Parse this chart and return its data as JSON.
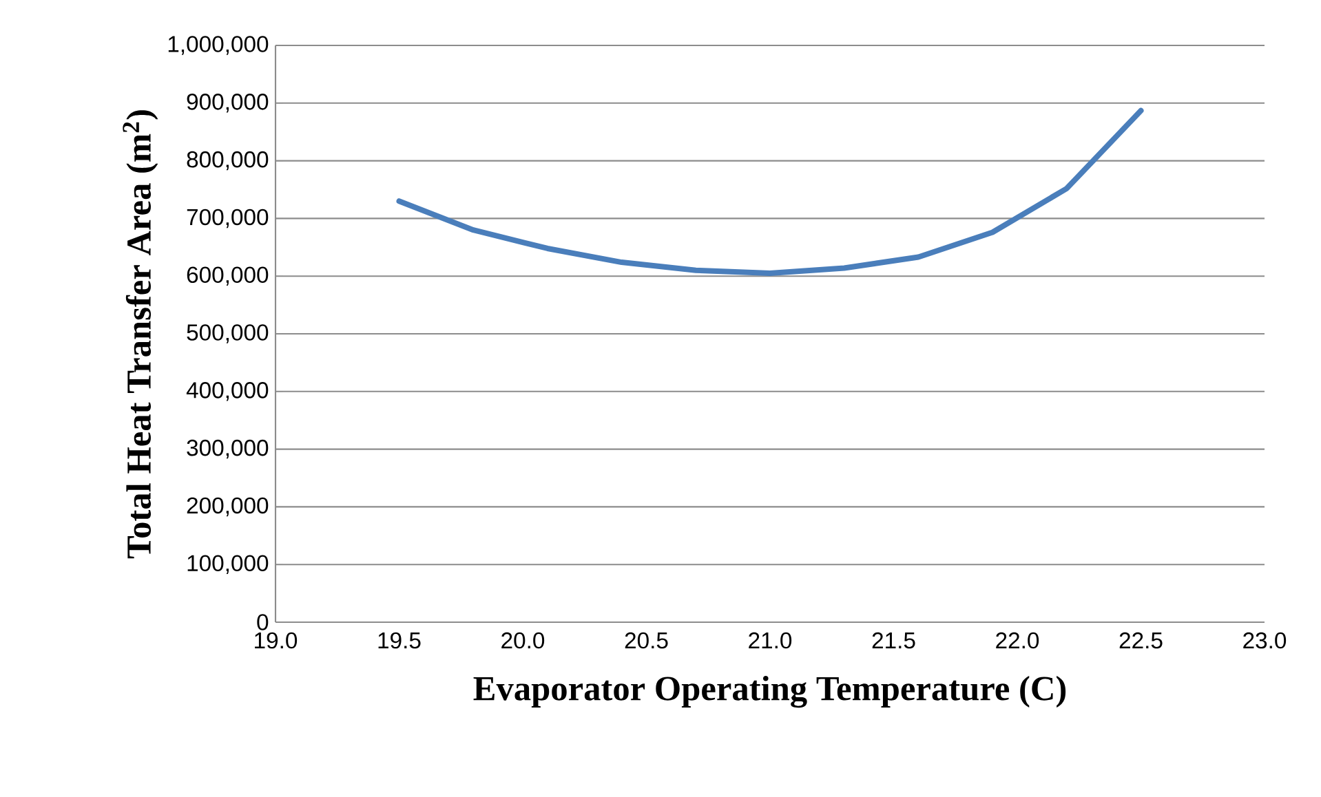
{
  "chart_data": {
    "type": "line",
    "xlabel": "Evaporator Operating Temperature (C)",
    "ylabel": "Total Heat Transfer Area (m$^{2}$)",
    "x": [
      19.5,
      19.8,
      20.1,
      20.4,
      20.7,
      21.0,
      21.3,
      21.6,
      21.9,
      22.2,
      22.5
    ],
    "series": [
      {
        "color": "#4a7ebb",
        "values": [
          730000,
          680000,
          648000,
          624000,
          610000,
          605000,
          614000,
          633000,
          676000,
          752000,
          887000
        ]
      }
    ],
    "xlim": [
      19.0,
      23.0
    ],
    "xticks": [
      {
        "value": 19.0,
        "label": "19.0"
      },
      {
        "value": 19.5,
        "label": "19.5"
      },
      {
        "value": 20.0,
        "label": "20.0"
      },
      {
        "value": 20.5,
        "label": "20.5"
      },
      {
        "value": 21.0,
        "label": "21.0"
      },
      {
        "value": 21.5,
        "label": "21.5"
      },
      {
        "value": 22.0,
        "label": "22.0"
      },
      {
        "value": 22.5,
        "label": "22.5"
      },
      {
        "value": 23.0,
        "label": "23.0"
      }
    ],
    "ylim": [
      0,
      1000000
    ],
    "yticks": [
      0,
      {
        "value": 100000,
        "label": "100,000"
      },
      {
        "value": 200000,
        "label": "200,000"
      },
      {
        "value": 300000,
        "label": "300,000"
      },
      {
        "value": 400000,
        "label": "400,000"
      },
      {
        "value": 500000,
        "label": "500,000"
      },
      {
        "value": 600000,
        "label": "600,000"
      },
      {
        "value": 700000,
        "label": "700,000"
      },
      {
        "value": 800000,
        "label": "800,000"
      },
      {
        "value": 900000,
        "label": "900,000"
      },
      {
        "value": 1000000,
        "label": "1,000,000"
      }
    ],
    "grid": "y",
    "legend": false,
    "marker": "none",
    "line_style": "solid"
  }
}
